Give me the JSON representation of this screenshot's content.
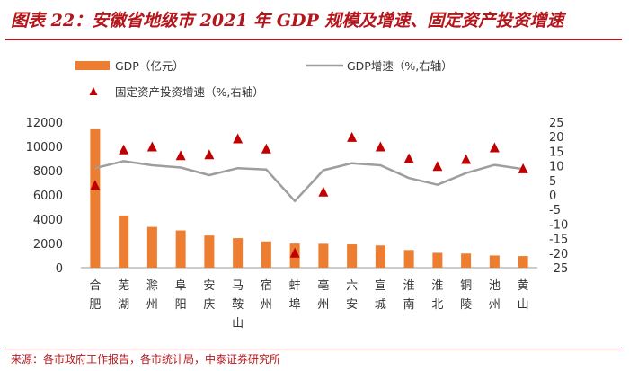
{
  "title": "图表 22：安徽省地级市 2021 年 GDP 规模及增速、固定资产投资增速",
  "source": "来源：各市政府工作报告，各市统计局，中泰证券研究所",
  "colors": {
    "bar": "#ed7d31",
    "line": "#9e9e9e",
    "marker": "#c00000",
    "accent": "#b5161b"
  },
  "chart_data": {
    "type": "bar",
    "categories": [
      "合肥",
      "芜湖",
      "滁州",
      "阜阳",
      "安庆",
      "马鞍山",
      "宿州",
      "蚌埠",
      "亳州",
      "六安",
      "宣城",
      "淮南",
      "淮北",
      "铜陵",
      "池州",
      "黄山"
    ],
    "category_labels": [
      [
        "合",
        "肥"
      ],
      [
        "芜",
        "湖"
      ],
      [
        "滁",
        "州"
      ],
      [
        "阜",
        "阳"
      ],
      [
        "安",
        "庆"
      ],
      [
        "马",
        "鞍",
        "山"
      ],
      [
        "宿",
        "州"
      ],
      [
        "蚌",
        "埠"
      ],
      [
        "亳",
        "州"
      ],
      [
        "六",
        "安"
      ],
      [
        "宣",
        "城"
      ],
      [
        "淮",
        "南"
      ],
      [
        "淮",
        "北"
      ],
      [
        "铜",
        "陵"
      ],
      [
        "池",
        "州"
      ],
      [
        "黄",
        "山"
      ]
    ],
    "series": [
      {
        "name": "GDP（亿元）",
        "type": "bar",
        "axis": "left",
        "values": [
          11413,
          4302,
          3362,
          3072,
          2656,
          2439,
          2167,
          1989,
          1973,
          1923,
          1834,
          1458,
          1223,
          1165,
          1005,
          957
        ]
      },
      {
        "name": "GDP增速（%,右轴）",
        "type": "line",
        "axis": "right",
        "values": [
          9.2,
          11.6,
          10.2,
          9.4,
          6.8,
          9.2,
          8.7,
          -2.1,
          8.5,
          10.9,
          10.2,
          5.8,
          3.5,
          7.5,
          10.3,
          8.9
        ]
      },
      {
        "name": "固定资产投资增速（%,右轴）",
        "type": "scatter",
        "axis": "right",
        "values": [
          3.3,
          15.5,
          16.5,
          13.5,
          13.8,
          19.3,
          15.8,
          -20.0,
          1.0,
          19.8,
          16.5,
          12.5,
          9.8,
          12.2,
          16.2,
          9.0
        ]
      }
    ],
    "yleft": {
      "min": 0,
      "max": 12000,
      "ticks": [
        0,
        2000,
        4000,
        6000,
        8000,
        10000,
        12000
      ]
    },
    "yright": {
      "min": -25,
      "max": 25,
      "ticks": [
        25,
        20,
        15,
        10,
        5,
        0,
        -5,
        -10,
        -15,
        -20,
        -25
      ]
    },
    "legend": {
      "bar": "GDP（亿元）",
      "line": "GDP增速（%,右轴）",
      "marker": "固定资产投资增速（%,右轴）"
    }
  }
}
